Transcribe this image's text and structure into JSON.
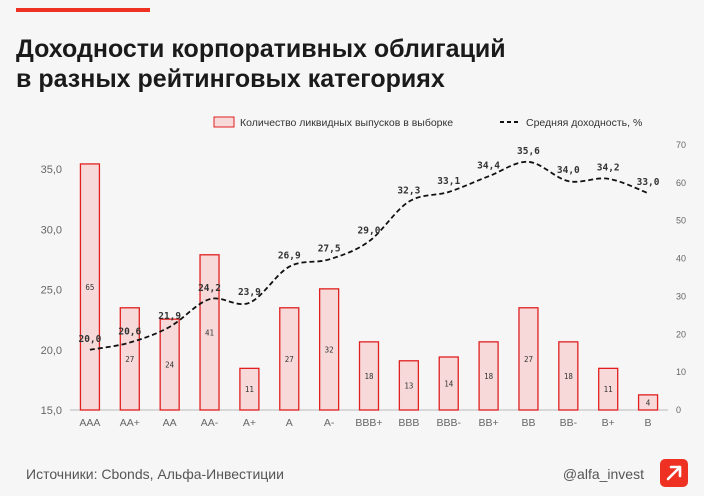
{
  "title": {
    "line1": "Доходности корпоративных облигаций",
    "line2": "в разных рейтинговых категориях"
  },
  "footer": {
    "source": "Источники: Cbonds, Альфа-Инвестиции",
    "handle": "@alfa_invest"
  },
  "colors": {
    "accent": "#ef3124",
    "bar_fill": "#f7d9d9",
    "bar_stroke": "#e02020",
    "text": "#1a1a1a",
    "axis_text": "#666666"
  },
  "chart_data": {
    "type": "bar+line",
    "categories": [
      "AAA",
      "AA+",
      "AA",
      "AA-",
      "A+",
      "A",
      "A-",
      "BBB+",
      "BBB",
      "BBB-",
      "BB+",
      "BB",
      "BB-",
      "B+",
      "B"
    ],
    "series": [
      {
        "name": "Количество ликвидных выпусков в выборке",
        "type": "bar",
        "axis": "right",
        "values": [
          65,
          27,
          24,
          41,
          11,
          27,
          32,
          18,
          13,
          14,
          18,
          27,
          18,
          11,
          4
        ],
        "labels": [
          "65",
          "27",
          "24",
          "41",
          "11",
          "27",
          "32",
          "18",
          "13",
          "14",
          "18",
          "27",
          "18",
          "11",
          "4"
        ]
      },
      {
        "name": "Средняя доходность, %",
        "type": "line",
        "style": "dashed",
        "axis": "left",
        "values": [
          20.0,
          20.6,
          21.9,
          24.2,
          23.9,
          26.9,
          27.5,
          29.0,
          32.3,
          33.1,
          34.4,
          35.6,
          34.0,
          34.2,
          33.0
        ],
        "labels": [
          "20,0",
          "20,6",
          "21,9",
          "24,2",
          "23,9",
          "26,9",
          "27,5",
          "29,0",
          "32,3",
          "33,1",
          "34,4",
          "35,6",
          "34,0",
          "34,2",
          "33,0"
        ]
      }
    ],
    "y_left": {
      "range": [
        15,
        37
      ],
      "ticks": [
        15,
        20,
        25,
        30,
        35
      ],
      "tick_labels": [
        "15,0",
        "20,0",
        "25,0",
        "30,0",
        "35,0"
      ]
    },
    "y_right": {
      "range": [
        0,
        70
      ],
      "ticks": [
        0,
        10,
        20,
        30,
        40,
        50,
        60,
        70
      ],
      "tick_labels": [
        "0",
        "10",
        "20",
        "30",
        "40",
        "50",
        "60",
        "70"
      ]
    },
    "legend": {
      "position": "top-right"
    },
    "grid": false
  }
}
